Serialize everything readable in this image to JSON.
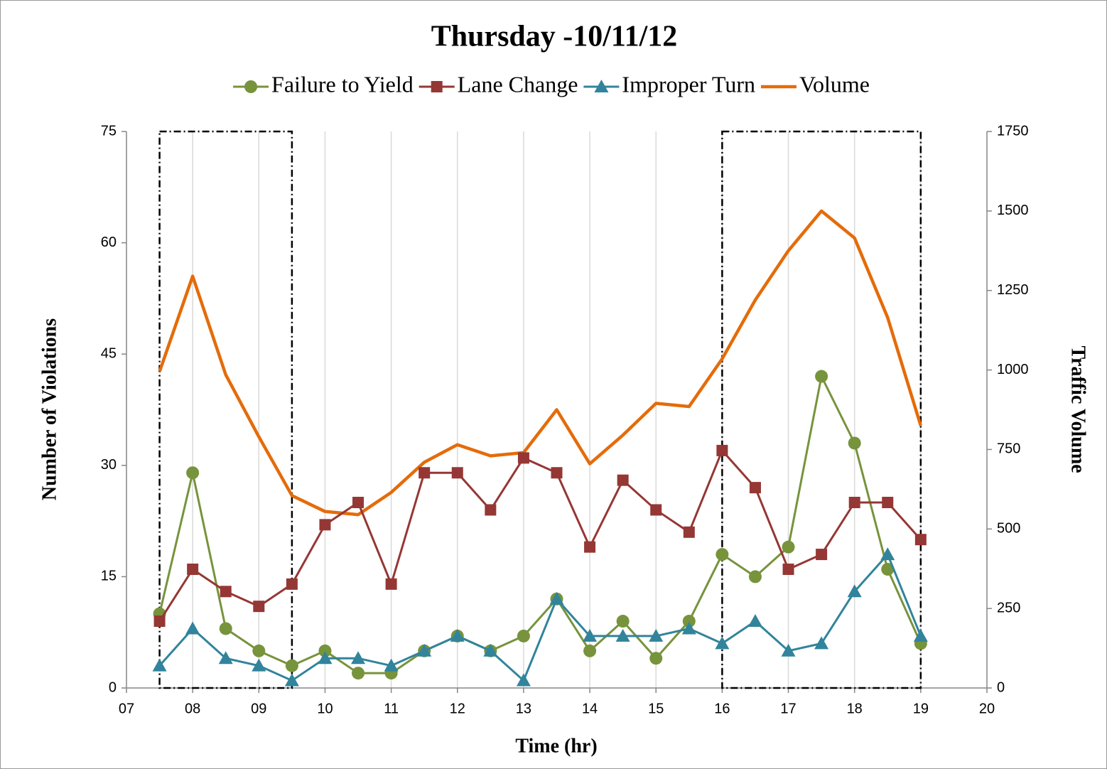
{
  "chart_data": {
    "type": "line",
    "title": "Thursday -10/11/12",
    "x_label": "Time (hr)",
    "y_label": "Number of Violations",
    "y2_label": "Traffic Volume",
    "x": [
      7.5,
      8,
      8.5,
      9,
      9.5,
      10,
      10.5,
      11,
      11.5,
      12,
      12.5,
      13,
      13.5,
      14,
      14.5,
      15,
      15.5,
      16,
      16.5,
      17,
      17.5,
      18,
      18.5,
      19
    ],
    "series": [
      {
        "name": "Failure to Yield",
        "color": "#77933c",
        "marker": "circle",
        "values": [
          10,
          29,
          8,
          5,
          3,
          5,
          2,
          2,
          5,
          7,
          5,
          7,
          12,
          5,
          9,
          4,
          9,
          18,
          15,
          19,
          42,
          33,
          16,
          6
        ]
      },
      {
        "name": "Lane Change",
        "color": "#953735",
        "marker": "square",
        "values": [
          9,
          16,
          13,
          11,
          14,
          22,
          25,
          14,
          29,
          29,
          24,
          31,
          29,
          19,
          28,
          24,
          21,
          32,
          27,
          16,
          18,
          25,
          25,
          20
        ]
      },
      {
        "name": "Improper Turn",
        "color": "#31849b",
        "marker": "triangle",
        "values": [
          3,
          8,
          4,
          3,
          1,
          4,
          4,
          3,
          5,
          7,
          5,
          1,
          12,
          7,
          7,
          7,
          8,
          6,
          9,
          5,
          6,
          13,
          18,
          7
        ]
      },
      {
        "name": "Volume",
        "color": "#e46c0a",
        "axis": "y2",
        "values": [
          995,
          1295,
          985,
          790,
          605,
          555,
          545,
          615,
          710,
          765,
          730,
          740,
          875,
          705,
          795,
          895,
          885,
          1035,
          1220,
          1375,
          1500,
          1415,
          1165,
          825
        ]
      }
    ],
    "xlim": [
      7,
      20
    ],
    "xticks": [
      {
        "value": 7,
        "label": "07"
      },
      {
        "value": 8,
        "label": "08"
      },
      {
        "value": 9,
        "label": "09"
      },
      10,
      11,
      12,
      13,
      14,
      15,
      16,
      17,
      18,
      19,
      20
    ],
    "ylim": [
      0,
      75
    ],
    "yticks": [
      0,
      15,
      30,
      45,
      60,
      75
    ],
    "y2lim": [
      0,
      1750
    ],
    "y2ticks": [
      0,
      250,
      500,
      750,
      1000,
      1250,
      1500,
      1750
    ],
    "grid": "x",
    "legend": "top",
    "highlight_ranges": [
      [
        7.5,
        9.5
      ],
      [
        16,
        19
      ]
    ]
  }
}
